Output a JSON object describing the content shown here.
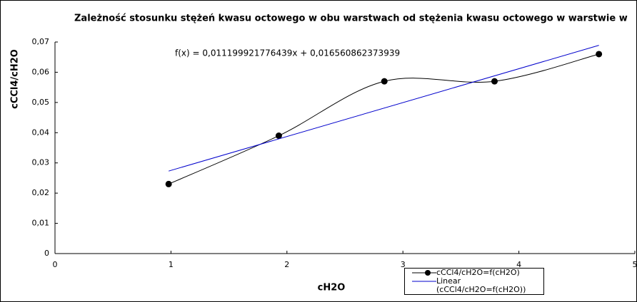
{
  "chart_data": {
    "type": "line",
    "title": "Zależność stosunku stężeń kwasu octowego w obu warstwach od stężenia kwasu octowego w warstwie w",
    "x_label": "cH2O",
    "y_label": "cCCl4/cH2O",
    "annotation": "f(x) = 0,011199921776439x + 0,016560862373939",
    "series": [
      {
        "name": "cCCl4/cH2O=f(cH2O)",
        "color": "#000000",
        "x": [
          0.98,
          1.93,
          2.84,
          3.79,
          4.69
        ],
        "values": [
          0.023,
          0.039,
          0.057,
          0.057,
          0.066
        ],
        "smooth": true,
        "markers": true
      },
      {
        "name": "Linear (cCCl4/cH2O=f(cH2O))",
        "color": "#0000cc",
        "x": [
          0.98,
          4.69
        ],
        "values": [
          0.0273,
          0.0689
        ],
        "smooth": false,
        "markers": false
      }
    ],
    "xlim": [
      0,
      5
    ],
    "xticks": [
      0,
      1,
      2,
      3,
      4,
      5
    ],
    "ylim": [
      0,
      0.07
    ],
    "yticks": [
      0,
      {
        "value": 0.01,
        "label": "0,01"
      },
      {
        "value": 0.02,
        "label": "0,02"
      },
      {
        "value": 0.03,
        "label": "0,03"
      },
      {
        "value": 0.04,
        "label": "0,04"
      },
      {
        "value": 0.05,
        "label": "0,05"
      },
      {
        "value": 0.06,
        "label": "0,06"
      },
      {
        "value": 0.07,
        "label": "0,07"
      }
    ],
    "grid": false
  }
}
